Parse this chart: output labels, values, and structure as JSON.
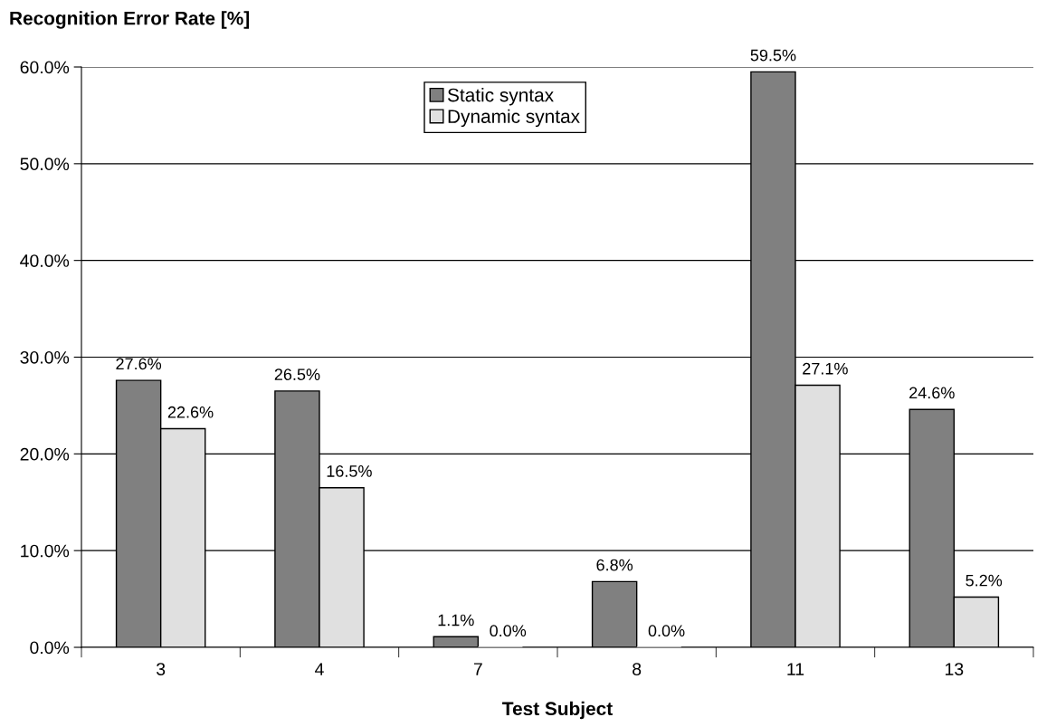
{
  "chart_data": {
    "type": "bar",
    "ylabel": "Recognition Error Rate [%]",
    "xlabel": "Test Subject",
    "categories": [
      "3",
      "4",
      "7",
      "8",
      "11",
      "13"
    ],
    "series": [
      {
        "name": "Static syntax",
        "color": "#808080",
        "values": [
          27.6,
          26.5,
          1.1,
          6.8,
          59.5,
          24.6
        ],
        "value_labels": [
          "27.6%",
          "26.5%",
          "1.1%",
          "6.8%",
          "59.5%",
          "24.6%"
        ]
      },
      {
        "name": "Dynamic syntax",
        "color": "#e0e0e0",
        "values": [
          22.6,
          16.5,
          0.0,
          0.0,
          27.1,
          5.2
        ],
        "value_labels": [
          "22.6%",
          "16.5%",
          "0.0%",
          "0.0%",
          "27.1%",
          "5.2%"
        ]
      }
    ],
    "ylim": [
      0,
      60
    ],
    "yticks": [
      {
        "value": 0,
        "label": "0.0%"
      },
      {
        "value": 10,
        "label": "10.0%"
      },
      {
        "value": 20,
        "label": "20.0%"
      },
      {
        "value": 30,
        "label": "30.0%"
      },
      {
        "value": 40,
        "label": "40.0%"
      },
      {
        "value": 50,
        "label": "50.0%"
      },
      {
        "value": 60,
        "label": "60.0%"
      }
    ],
    "grid": "y",
    "legend": "top"
  }
}
